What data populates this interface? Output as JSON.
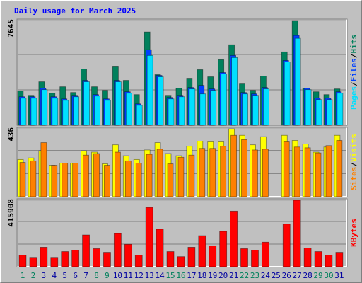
{
  "title": "Daily usage for March 2025",
  "legend_separator": "/",
  "chart_data": [
    {
      "type": "bar",
      "ylim": [
        0,
        7645
      ],
      "yticks": [
        7645
      ],
      "series": [
        {
          "name": "Hits",
          "color": "#00805c",
          "values": [
            2496,
            2184,
            3172,
            2340,
            2808,
            2392,
            4108,
            2808,
            2548,
            4316,
            3276,
            2236,
            6812,
            3692,
            2184,
            2704,
            3432,
            4056,
            3536,
            4784,
            5876,
            3016,
            2548,
            3588,
            0,
            5356,
            7645,
            2704,
            2444,
            2236,
            2652
          ]
        },
        {
          "name": "Files",
          "color": "#0040ff",
          "values": [
            2080,
            2080,
            2704,
            2080,
            1924,
            2184,
            3276,
            2236,
            1924,
            3276,
            2444,
            1560,
            5512,
            3640,
            2028,
            2184,
            2756,
            2912,
            2652,
            3848,
            5096,
            2392,
            2288,
            2756,
            0,
            4732,
            6552,
            2704,
            1976,
            1976,
            2444
          ]
        },
        {
          "name": "Pages",
          "color": "#00e0ff",
          "values": [
            1976,
            1976,
            2600,
            1976,
            1820,
            2080,
            3172,
            2132,
            1820,
            3172,
            2340,
            1456,
            5096,
            3536,
            1924,
            2080,
            2652,
            2288,
            2548,
            3744,
            4940,
            2288,
            2184,
            2652,
            0,
            4628,
            6344,
            2600,
            1872,
            1872,
            2340
          ]
        }
      ]
    },
    {
      "type": "bar",
      "ylim": [
        0,
        436
      ],
      "yticks": [
        436
      ],
      "series": [
        {
          "name": "Visits",
          "color": "#ffff00",
          "values": [
            239,
            249,
            295,
            202,
            216,
            216,
            295,
            286,
            211,
            333,
            263,
            239,
            300,
            347,
            277,
            263,
            324,
            356,
            352,
            352,
            436,
            394,
            333,
            385,
            0,
            394,
            361,
            338,
            286,
            319,
            394
          ]
        },
        {
          "name": "Sites",
          "color": "#ff8000",
          "values": [
            220,
            230,
            347,
            202,
            216,
            216,
            267,
            277,
            202,
            286,
            230,
            216,
            272,
            305,
            211,
            253,
            267,
            310,
            310,
            324,
            394,
            366,
            300,
            305,
            0,
            352,
            319,
            314,
            281,
            328,
            361
          ]
        }
      ]
    },
    {
      "type": "bar",
      "ylim": [
        0,
        415908
      ],
      "yticks": [
        415908
      ],
      "categories": [
        "1",
        "2",
        "3",
        "4",
        "5",
        "6",
        "7",
        "8",
        "9",
        "10",
        "11",
        "12",
        "13",
        "14",
        "15",
        "16",
        "17",
        "18",
        "19",
        "20",
        "21",
        "22",
        "23",
        "24",
        "25",
        "26",
        "27",
        "28",
        "29",
        "30",
        "31"
      ],
      "category_colors": [
        "#00805c",
        "#00805c",
        "#0000a0",
        "#0000a0",
        "#0000a0",
        "#0000a0",
        "#0000a0",
        "#00805c",
        "#00805c",
        "#0000a0",
        "#0000a0",
        "#0000a0",
        "#0000a0",
        "#0000a0",
        "#00805c",
        "#00805c",
        "#0000a0",
        "#0000a0",
        "#0000a0",
        "#0000a0",
        "#0000a0",
        "#00805c",
        "#00805c",
        "#0000a0",
        "#0000a0",
        "#0000a0",
        "#0000a0",
        "#0000a0",
        "#00805c",
        "#00805c",
        "#0000a0"
      ],
      "series": [
        {
          "name": "KBytes",
          "color": "#ff0000",
          "values": [
            72336,
            58773,
            122067,
            58773,
            94941,
            103983,
            198924,
            113025,
            90420,
            207966,
            140151,
            72336,
            370722,
            235092,
            94941,
            63294,
            122067,
            194403,
            131109,
            221529,
            348117,
            113025,
            103983,
            153714,
            0,
            266739,
            415908,
            117546,
            94941,
            72336,
            90420
          ]
        }
      ]
    }
  ]
}
